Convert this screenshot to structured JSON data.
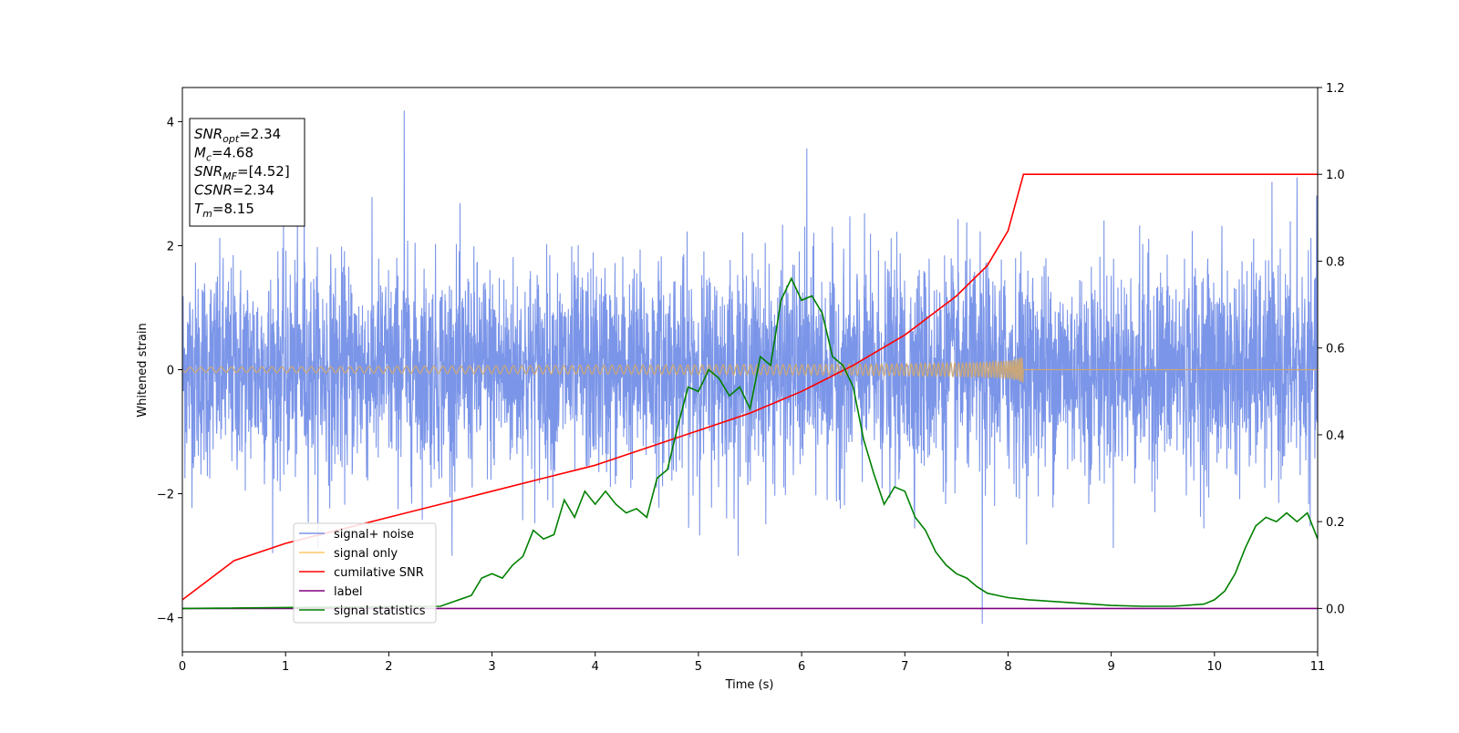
{
  "chart_data": {
    "type": "line",
    "xlabel": "Time (s)",
    "ylabel": "Whitened strain",
    "xlim": [
      0,
      11
    ],
    "ylim_left": [
      -4.55,
      4.55
    ],
    "ylim_right": [
      -0.1,
      1.2
    ],
    "x_ticks": [
      "0",
      "1",
      "2",
      "3",
      "4",
      "5",
      "6",
      "7",
      "8",
      "9",
      "10",
      "11"
    ],
    "y_ticks_left": [
      "−4",
      "−2",
      "0",
      "2",
      "4"
    ],
    "y_ticks_right": [
      "0.0",
      "0.2",
      "0.4",
      "0.6",
      "0.8",
      "1.0",
      "1.2"
    ],
    "legend_placement": "lower-left",
    "legend": [
      {
        "label": "signal+ noise",
        "color": "#7b95e8"
      },
      {
        "label": "signal only",
        "color": "#ffc766"
      },
      {
        "label": "cumilative SNR",
        "color": "#ff0000"
      },
      {
        "label": "label",
        "color": "#800080"
      },
      {
        "label": "signal statistics",
        "color": "#008000"
      }
    ],
    "annotation": [
      {
        "base": "SNR",
        "sub": "opt",
        "rest": "=2.34"
      },
      {
        "base": "M",
        "sub": "c",
        "rest": "=4.68"
      },
      {
        "base": "SNR",
        "sub": "MF",
        "rest": "=[4.52]"
      },
      {
        "base": "CSNR",
        "sub": "",
        "rest": "=2.34"
      },
      {
        "base": "T",
        "sub": "m",
        "rest": "=8.15"
      }
    ],
    "series": [
      {
        "name": "signal+ noise",
        "axis": "left",
        "color": "#7b95e8",
        "description_of_values": "white noise band approx -2.5..2.5 with peaks",
        "peaks": [
          [
            2.15,
            4.18
          ],
          [
            1.18,
            3.45
          ],
          [
            6.05,
            3.57
          ],
          [
            7.75,
            -4.1
          ],
          [
            10.8,
            3.1
          ]
        ],
        "amplitude_sigma": 0.85
      },
      {
        "name": "signal only",
        "axis": "left",
        "color": "#c9a77a",
        "chirp_end": 8.15,
        "max_amplitude": 0.2
      },
      {
        "name": "cumilative SNR",
        "axis": "right",
        "color": "#ff0000",
        "x": [
          0,
          0.5,
          1,
          1.5,
          2,
          2.5,
          3,
          3.5,
          4,
          4.5,
          5,
          5.5,
          6,
          6.5,
          7,
          7.5,
          7.8,
          8.0,
          8.15,
          11
        ],
        "values": [
          0.02,
          0.11,
          0.15,
          0.18,
          0.21,
          0.24,
          0.27,
          0.3,
          0.33,
          0.37,
          0.41,
          0.45,
          0.5,
          0.56,
          0.63,
          0.72,
          0.79,
          0.87,
          1.0,
          1.0
        ]
      },
      {
        "name": "label",
        "axis": "right",
        "color": "#800080",
        "x": [
          0,
          11
        ],
        "values": [
          0.0,
          0.0
        ]
      },
      {
        "name": "signal statistics",
        "axis": "right",
        "color": "#008000",
        "x": [
          0,
          2.5,
          2.8,
          2.9,
          3.0,
          3.1,
          3.2,
          3.3,
          3.4,
          3.5,
          3.6,
          3.7,
          3.8,
          3.9,
          4.0,
          4.1,
          4.2,
          4.3,
          4.4,
          4.5,
          4.6,
          4.7,
          4.8,
          4.9,
          5.0,
          5.1,
          5.2,
          5.3,
          5.4,
          5.5,
          5.6,
          5.7,
          5.8,
          5.9,
          6.0,
          6.1,
          6.2,
          6.3,
          6.4,
          6.5,
          6.6,
          6.7,
          6.8,
          6.9,
          7.0,
          7.1,
          7.2,
          7.3,
          7.4,
          7.5,
          7.6,
          7.7,
          7.8,
          7.9,
          8.0,
          8.2,
          8.5,
          8.8,
          9.0,
          9.3,
          9.6,
          9.9,
          10.0,
          10.1,
          10.2,
          10.3,
          10.4,
          10.5,
          10.6,
          10.7,
          10.8,
          10.9,
          11.0
        ],
        "values": [
          0.0,
          0.005,
          0.03,
          0.07,
          0.08,
          0.07,
          0.1,
          0.12,
          0.18,
          0.16,
          0.17,
          0.25,
          0.21,
          0.27,
          0.24,
          0.27,
          0.24,
          0.22,
          0.23,
          0.21,
          0.3,
          0.32,
          0.42,
          0.51,
          0.5,
          0.55,
          0.53,
          0.49,
          0.51,
          0.46,
          0.58,
          0.56,
          0.71,
          0.76,
          0.71,
          0.72,
          0.68,
          0.58,
          0.56,
          0.51,
          0.39,
          0.31,
          0.24,
          0.28,
          0.27,
          0.21,
          0.18,
          0.13,
          0.1,
          0.08,
          0.07,
          0.05,
          0.035,
          0.03,
          0.025,
          0.02,
          0.015,
          0.01,
          0.007,
          0.005,
          0.005,
          0.01,
          0.02,
          0.04,
          0.08,
          0.14,
          0.19,
          0.21,
          0.2,
          0.22,
          0.2,
          0.22,
          0.16
        ]
      }
    ]
  }
}
